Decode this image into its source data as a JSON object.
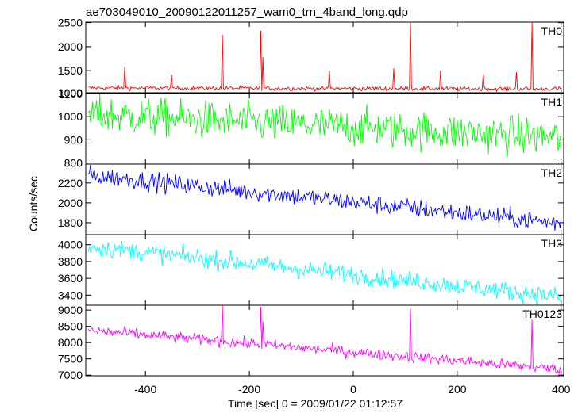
{
  "chart_data": {
    "type": "line",
    "title": "ae703049010_20090122011257_wam0_trn_4band_long.qdp",
    "xlabel": "Time [sec] 0 = 2009/01/22 01:12:57",
    "ylabel": "Counts/sec",
    "xlim": [
      -515,
      405
    ],
    "xticks": [
      -400,
      -200,
      0,
      200,
      400
    ],
    "x_step": 2,
    "panels": [
      {
        "name": "TH0",
        "color": "#ff0000",
        "ylim": [
          1040,
          2510
        ],
        "yticks": [
          1000,
          1500,
          2000,
          2500
        ],
        "trend_start": 1140,
        "trend_end": 1120,
        "noise": 22,
        "spikes": [
          {
            "x": -441,
            "y": 1580
          },
          {
            "x": -350,
            "y": 1420
          },
          {
            "x": -253,
            "y": 2250
          },
          {
            "x": -178,
            "y": 2330
          },
          {
            "x": -174,
            "y": 1780
          },
          {
            "x": -46,
            "y": 1500
          },
          {
            "x": 78,
            "y": 1550
          },
          {
            "x": 110,
            "y": 2500
          },
          {
            "x": 168,
            "y": 1500
          },
          {
            "x": 250,
            "y": 1420
          },
          {
            "x": 314,
            "y": 1470
          },
          {
            "x": 344,
            "y": 2500
          }
        ]
      },
      {
        "name": "TH1",
        "color": "#00ff00",
        "ylim": [
          795,
          1100
        ],
        "yticks": [
          800,
          900,
          1000,
          1100
        ],
        "trend_start": 1010,
        "trend_end": 910,
        "noise": 42,
        "spikes": []
      },
      {
        "name": "TH2",
        "color": "#0000ff",
        "ylim": [
          1680,
          2390
        ],
        "yticks": [
          1800,
          2000,
          2200
        ],
        "trend_start": 2280,
        "trend_end": 1795,
        "noise": 48,
        "spikes": []
      },
      {
        "name": "TH3",
        "color": "#00ffff",
        "ylim": [
          3280,
          4120
        ],
        "yticks": [
          3400,
          3600,
          3800,
          4000
        ],
        "trend_start": 3980,
        "trend_end": 3380,
        "noise": 55,
        "spikes": []
      },
      {
        "name": "TH0123",
        "color": "#ff00ff",
        "ylim": [
          6980,
          9150
        ],
        "yticks": [
          7000,
          7500,
          8000,
          8500,
          9000
        ],
        "trend_start": 8380,
        "trend_end": 7180,
        "noise": 85,
        "spikes": [
          {
            "x": -253,
            "y": 9150
          },
          {
            "x": -178,
            "y": 9100
          },
          {
            "x": -174,
            "y": 8650
          },
          {
            "x": 110,
            "y": 9050
          },
          {
            "x": 344,
            "y": 8700
          }
        ]
      }
    ]
  }
}
